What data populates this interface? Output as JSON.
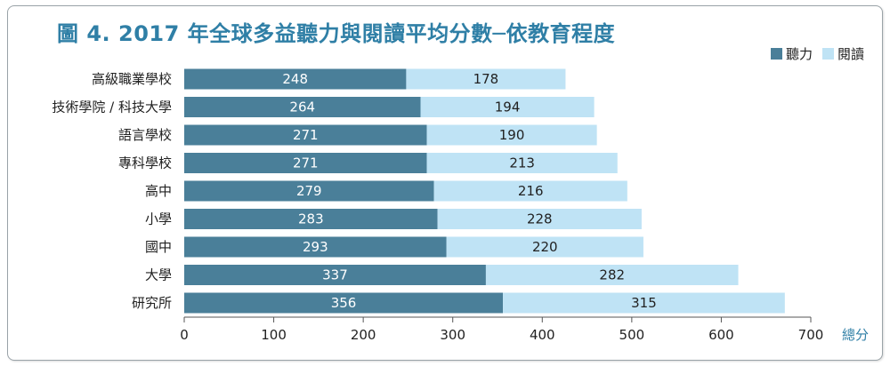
{
  "chart_data": {
    "type": "bar",
    "orientation": "horizontal",
    "stacked": true,
    "title": "圖 4. 2017 年全球多益聽力與閱讀平均分數─依教育程度",
    "categories": [
      "高級職業學校",
      "技術學院 / 科技大學",
      "語言學校",
      "專科學校",
      "高中",
      "小學",
      "國中",
      "大學",
      "研究所"
    ],
    "series": [
      {
        "name": "聽力",
        "color": "#4a7f99",
        "values": [
          248,
          264,
          271,
          271,
          279,
          283,
          293,
          337,
          356
        ]
      },
      {
        "name": "閱讀",
        "color": "#bfe3f5",
        "values": [
          178,
          194,
          190,
          213,
          216,
          228,
          220,
          282,
          315
        ]
      }
    ],
    "x_ticks": [
      "0",
      "100",
      "200",
      "300",
      "400",
      "500",
      "600",
      "700"
    ],
    "xlim": [
      0,
      700
    ],
    "xlabel": "總分",
    "legend_position": "top-right",
    "grid": false
  }
}
